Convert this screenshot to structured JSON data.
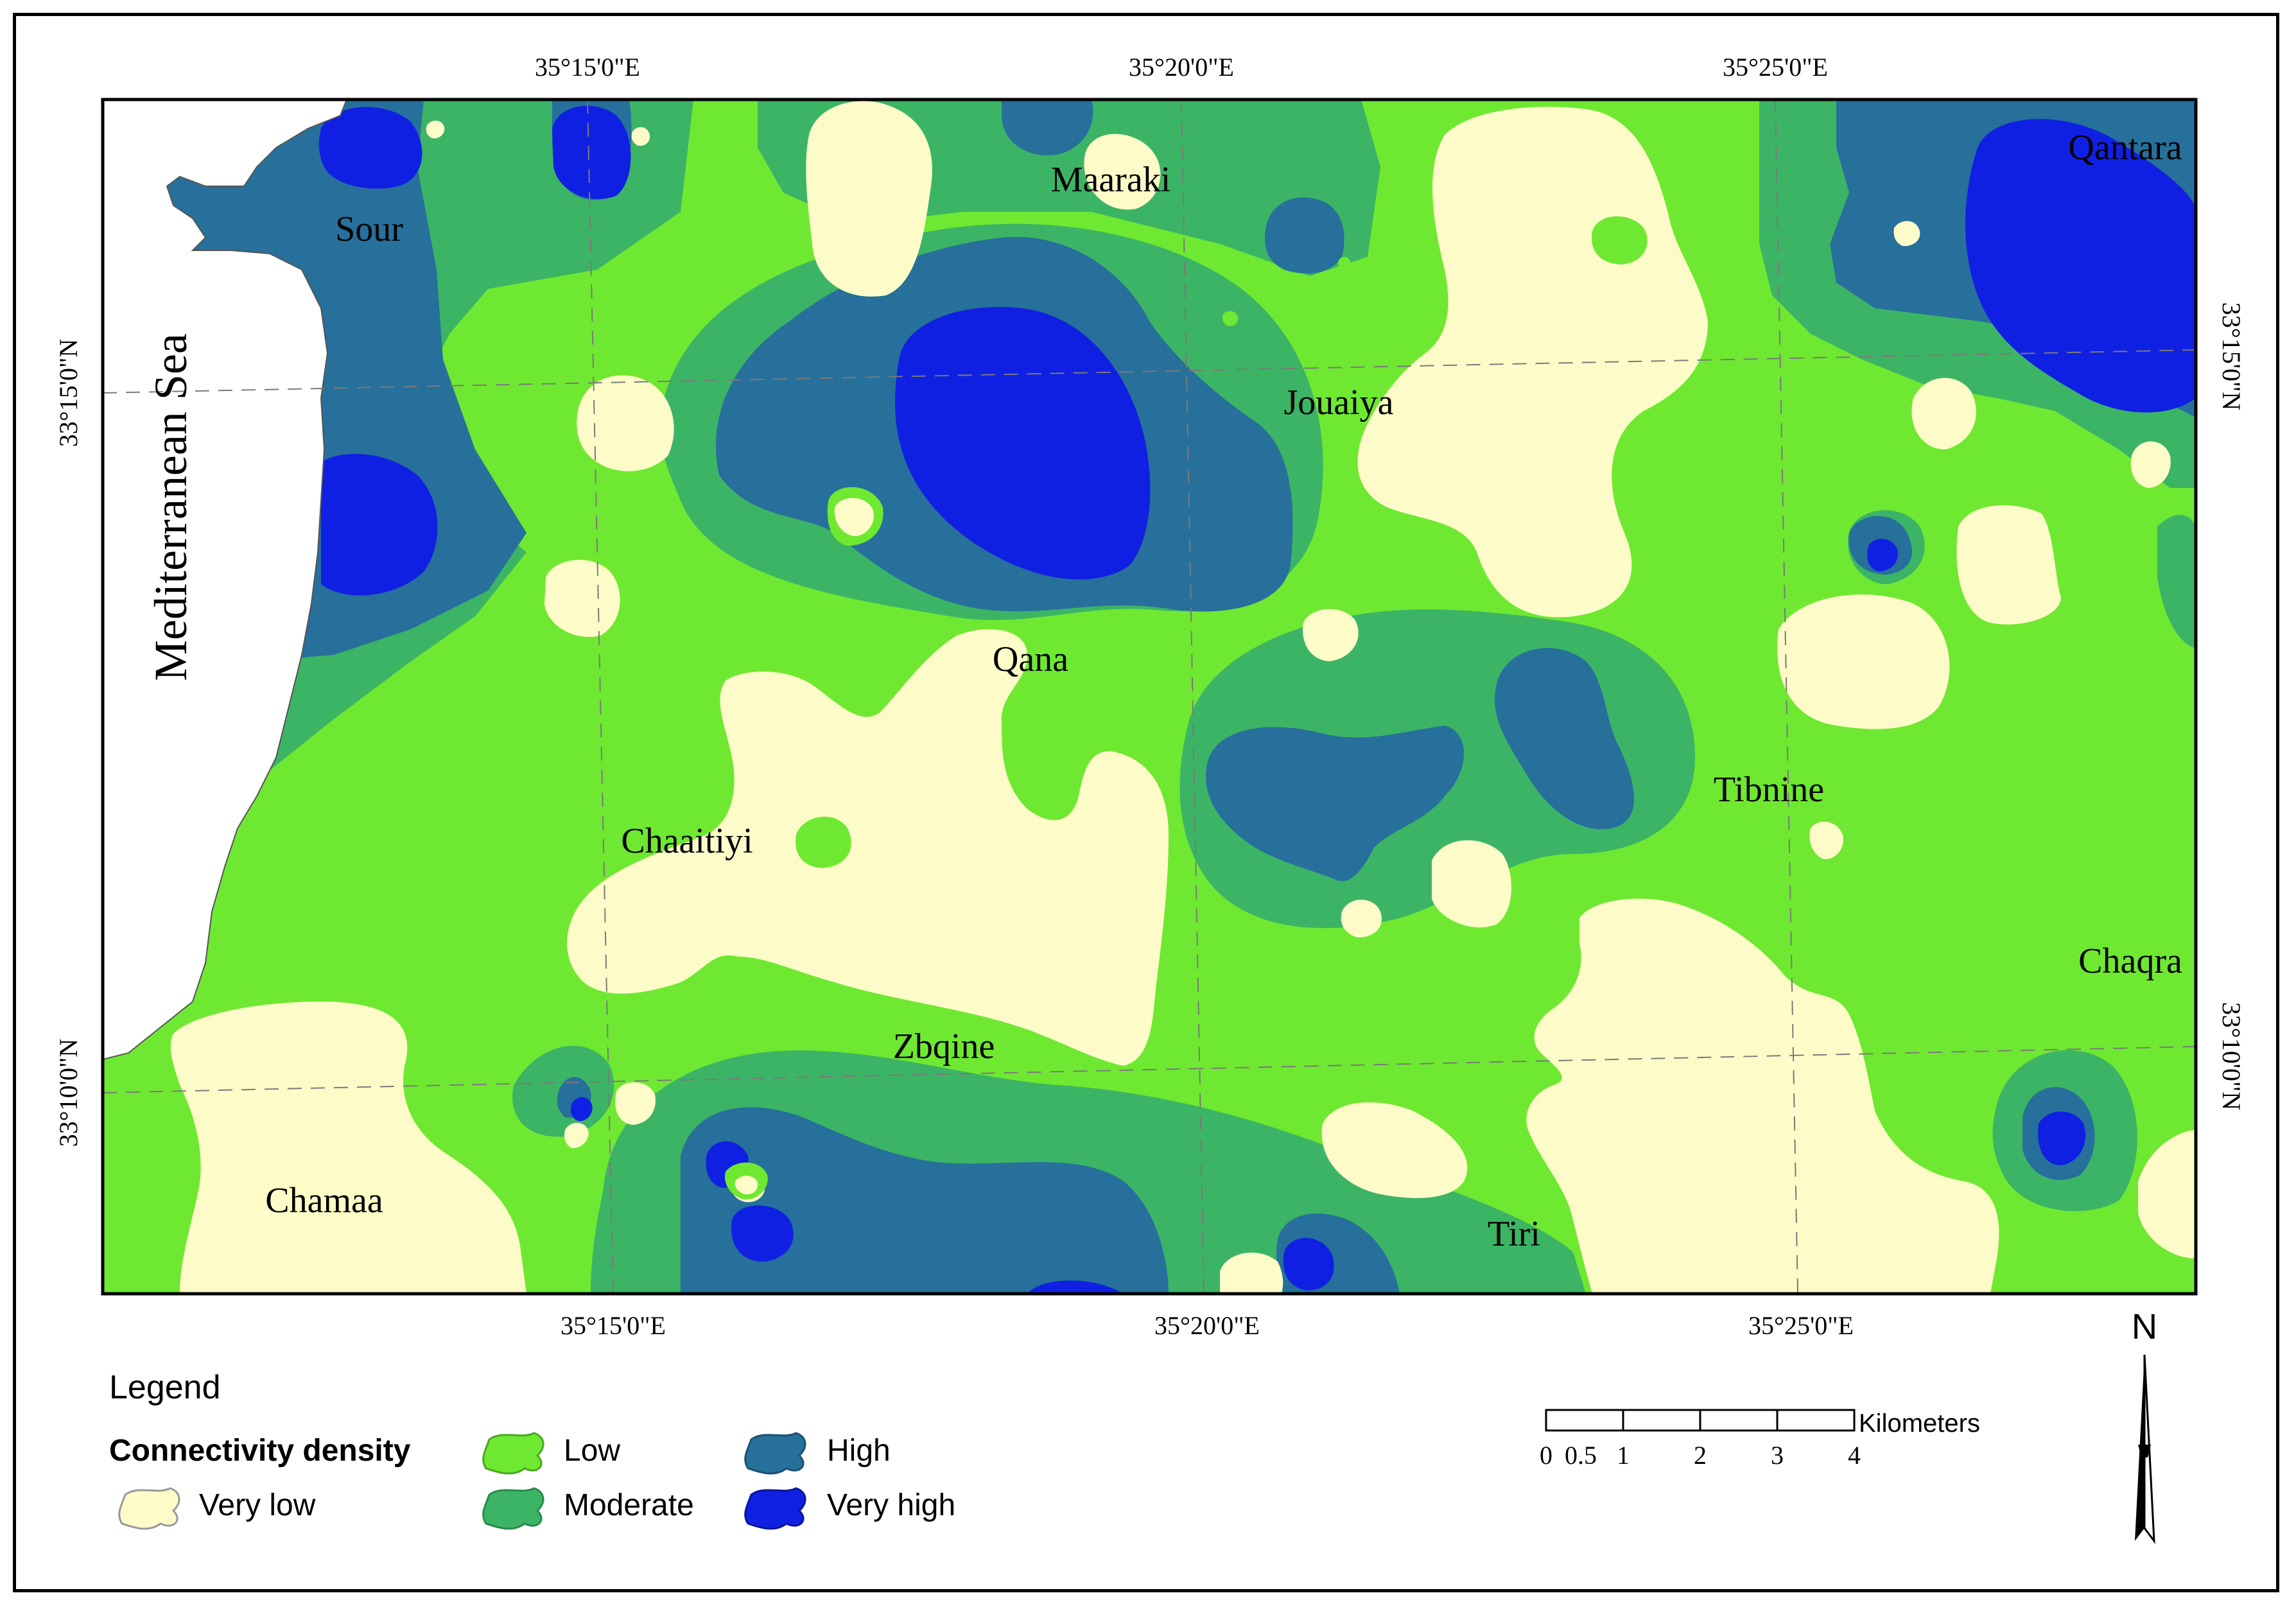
{
  "map": {
    "sea_label": "Mediterranean Sea",
    "places": [
      {
        "name": "Sour"
      },
      {
        "name": "Maaraki"
      },
      {
        "name": "Qantara"
      },
      {
        "name": "Jouaiya"
      },
      {
        "name": "Qana"
      },
      {
        "name": "Tibnine"
      },
      {
        "name": "Chaaitiyi"
      },
      {
        "name": "Chaqra"
      },
      {
        "name": "Zbqine"
      },
      {
        "name": "Chamaa"
      },
      {
        "name": "Tiri"
      }
    ],
    "graticule": {
      "top_longitudes": [
        "35°15'0\"E",
        "35°20'0\"E",
        "35°25'0\"E"
      ],
      "bottom_longitudes": [
        "35°15'0\"E",
        "35°20'0\"E",
        "35°25'0\"E"
      ],
      "left_latitudes": [
        "33°15'0\"N",
        "33°10'0\"N"
      ],
      "right_latitudes": [
        "33°15'0\"N",
        "33°10'0\"N"
      ]
    },
    "colors": {
      "very_low": "#fdfcc8",
      "low": "#6fe832",
      "moderate": "#3cb465",
      "high": "#26709b",
      "very_high": "#1020e2",
      "sea": "#ffffff"
    }
  },
  "legend": {
    "title": "Legend",
    "subtitle": "Connectivity density",
    "classes": [
      {
        "label": "Very low",
        "color": "#fdfcc8"
      },
      {
        "label": "Low",
        "color": "#6fe832"
      },
      {
        "label": "Moderate",
        "color": "#3cb465"
      },
      {
        "label": "High",
        "color": "#26709b"
      },
      {
        "label": "Very high",
        "color": "#1020e2"
      }
    ]
  },
  "scalebar": {
    "unit": "Kilometers",
    "ticks": [
      "0",
      "0.5",
      "1",
      "2",
      "3",
      "4"
    ]
  },
  "north_arrow": {
    "label": "N"
  }
}
